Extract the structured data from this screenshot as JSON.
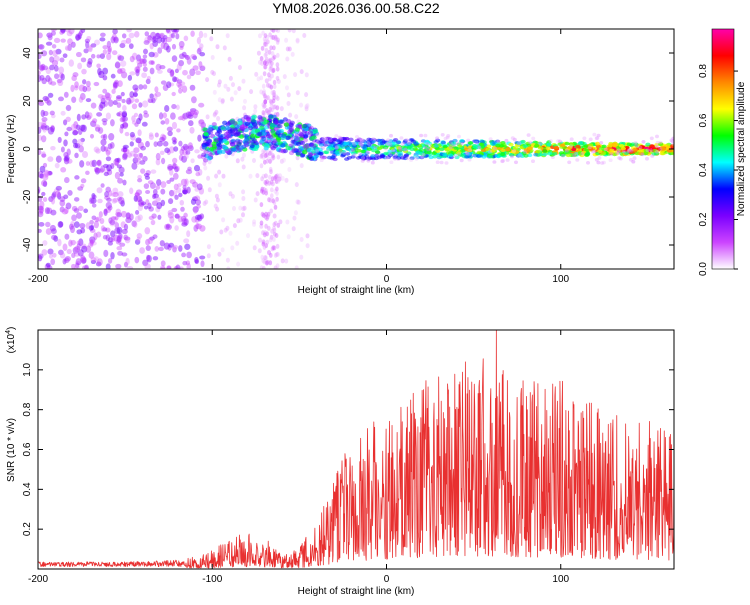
{
  "title": "YM08.2026.036.00.58.C22",
  "chart_data": [
    {
      "type": "heatmap",
      "name": "spectrogram",
      "xlabel": "Height of straight line (km)",
      "ylabel": "Frequency (Hz)",
      "xlim": [
        -200,
        165
      ],
      "ylim": [
        -50,
        50
      ],
      "xticks": [
        -200,
        -100,
        0,
        100
      ],
      "yticks": [
        -40,
        -20,
        0,
        20,
        40
      ],
      "colorbar": {
        "label": "Normalized spectral amplitude",
        "range": [
          0,
          0.97
        ],
        "ticks": [
          0.0,
          0.2,
          0.4,
          0.6,
          0.8
        ],
        "tick_labels": [
          "0.0",
          "0.2",
          "0.4",
          "0.6",
          "0.8"
        ],
        "colors": [
          "#ffffff",
          "#cc44ff",
          "#7a00ff",
          "#0000ff",
          "#00ffff",
          "#00ff00",
          "#ffff00",
          "#ff8800",
          "#ff0000",
          "#ff00aa"
        ]
      },
      "regions": [
        {
          "label": "broadband noise",
          "x": [
            -200,
            -105
          ],
          "freq": [
            -50,
            50
          ],
          "amplitude": 0.08
        },
        {
          "label": "vertical stripe",
          "x": [
            -72,
            -62
          ],
          "freq": [
            -50,
            50
          ],
          "amplitude": 0.05
        },
        {
          "label": "early band",
          "x": [
            -105,
            -40
          ],
          "freq": [
            -8,
            12
          ],
          "amplitude": 0.35
        },
        {
          "label": "narrowband signal",
          "x": [
            -40,
            165
          ],
          "freq": [
            -3,
            3
          ],
          "amplitude": 0.85
        }
      ]
    },
    {
      "type": "line",
      "name": "snr",
      "xlabel": "Height of straight line (km)",
      "ylabel": "SNR (10 * v/v)",
      "ylabel_scale": "(x10",
      "ylabel_scale_exp": "4",
      "ylabel_scale_close": ")",
      "xlim": [
        -200,
        165
      ],
      "ylim": [
        0,
        1.2
      ],
      "xticks": [
        -200,
        -100,
        0,
        100
      ],
      "yticks": [
        0.2,
        0.4,
        0.6,
        0.8,
        1.0
      ],
      "ytick_labels": [
        "0.2",
        "0.4",
        "0.6",
        "0.8",
        "1.0"
      ],
      "color": "#e83030",
      "envelope": [
        {
          "x": -200,
          "y": 0.03
        },
        {
          "x": -150,
          "y": 0.03
        },
        {
          "x": -115,
          "y": 0.04
        },
        {
          "x": -100,
          "y": 0.07
        },
        {
          "x": -90,
          "y": 0.12
        },
        {
          "x": -80,
          "y": 0.14
        },
        {
          "x": -70,
          "y": 0.12
        },
        {
          "x": -60,
          "y": 0.05
        },
        {
          "x": -50,
          "y": 0.08
        },
        {
          "x": -35,
          "y": 0.25
        },
        {
          "x": -25,
          "y": 0.45
        },
        {
          "x": -10,
          "y": 0.55
        },
        {
          "x": 0,
          "y": 0.6
        },
        {
          "x": 20,
          "y": 0.72
        },
        {
          "x": 40,
          "y": 0.78
        },
        {
          "x": 60,
          "y": 0.8
        },
        {
          "x": 80,
          "y": 0.75
        },
        {
          "x": 100,
          "y": 0.72
        },
        {
          "x": 120,
          "y": 0.62
        },
        {
          "x": 140,
          "y": 0.58
        },
        {
          "x": 165,
          "y": 0.55
        }
      ],
      "peak": {
        "x": 63,
        "y": 1.2
      }
    }
  ]
}
